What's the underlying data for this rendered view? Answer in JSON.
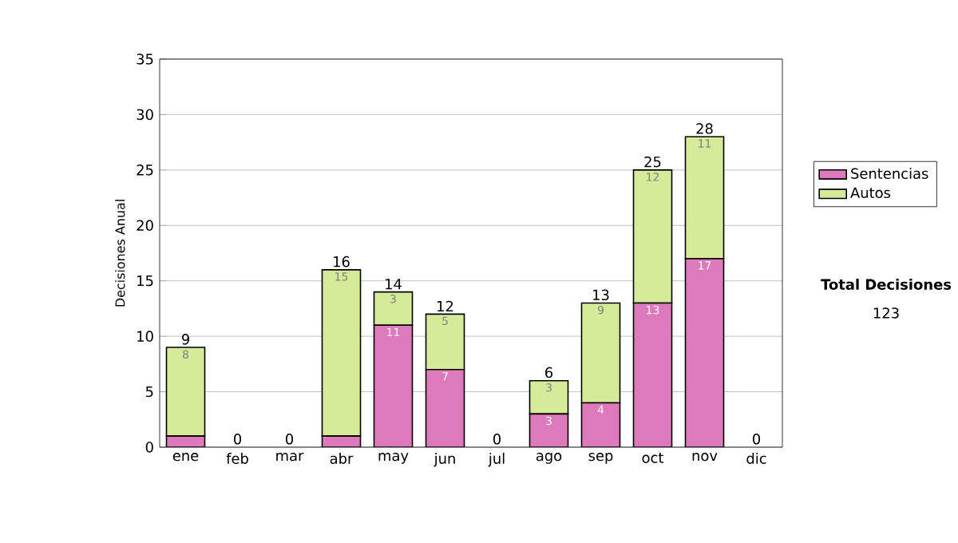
{
  "chart_data": {
    "type": "bar",
    "stacked": true,
    "ylabel": "Decisiones Anual",
    "categories": [
      "ene",
      "feb",
      "mar",
      "abr",
      "may",
      "jun",
      "jul",
      "ago",
      "sep",
      "oct",
      "nov",
      "dic"
    ],
    "series": [
      {
        "name": "Sentencias",
        "color": "#dd7abb",
        "values": [
          1,
          0,
          0,
          1,
          11,
          7,
          0,
          3,
          4,
          13,
          17,
          0
        ],
        "value_labels": [
          null,
          null,
          null,
          null,
          "11",
          "7",
          null,
          "3",
          "4",
          "13",
          "17",
          null
        ]
      },
      {
        "name": "Autos",
        "color": "#d5eb99",
        "values": [
          8,
          0,
          0,
          15,
          3,
          5,
          0,
          3,
          9,
          12,
          11,
          0
        ],
        "value_labels": [
          "8",
          null,
          null,
          "15",
          "3",
          "5",
          null,
          "3",
          "9",
          "12",
          "11",
          null
        ]
      }
    ],
    "totals": [
      "9",
      "0",
      "0",
      "16",
      "14",
      "12",
      "0",
      "6",
      "13",
      "25",
      "28",
      "0"
    ],
    "ylim": [
      0,
      35
    ],
    "yticks": [
      0,
      5,
      10,
      15,
      20,
      25,
      30,
      35
    ],
    "grid": "y",
    "legend": "right",
    "annotations": [
      "Total Decisiones",
      "123"
    ]
  }
}
